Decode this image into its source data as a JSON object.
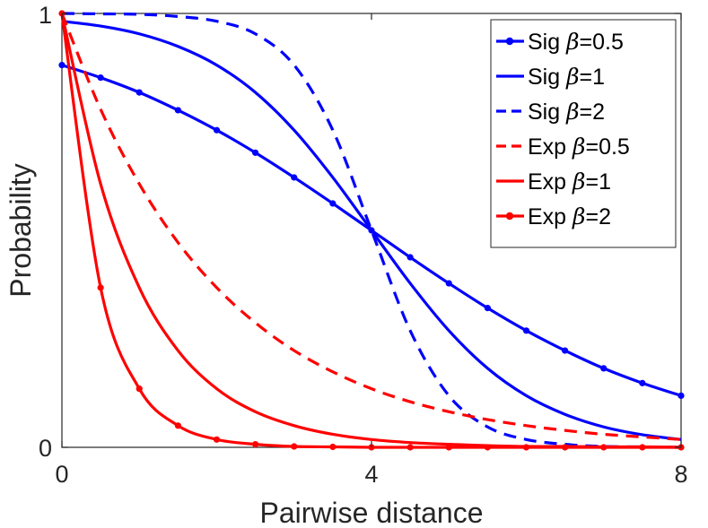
{
  "chart_data": {
    "type": "line",
    "title": "",
    "xlabel": "Pairwise distance",
    "ylabel": "Probability",
    "xlim": [
      0,
      8
    ],
    "ylim": [
      0,
      1
    ],
    "x_ticks": [
      0,
      4,
      8
    ],
    "x_tick_labels": [
      "0",
      "4",
      "8"
    ],
    "y_ticks": [
      0,
      1
    ],
    "y_tick_labels": [
      "0",
      "1"
    ],
    "grid": false,
    "legend_position": "top-right",
    "x": [
      0,
      0.5,
      1,
      1.5,
      2,
      2.5,
      3,
      3.5,
      4,
      4.5,
      5,
      5.5,
      6,
      6.5,
      7,
      7.5,
      8
    ],
    "series": [
      {
        "name": "Sig β=0.5",
        "label_prefix": "Sig",
        "beta": "=0.5",
        "color": "#0000ff",
        "line_style": "solid",
        "marker": true,
        "values": [
          0.881,
          0.852,
          0.818,
          0.777,
          0.731,
          0.679,
          0.622,
          0.562,
          0.5,
          0.438,
          0.378,
          0.321,
          0.269,
          0.223,
          0.182,
          0.148,
          0.119
        ]
      },
      {
        "name": "Sig β=1",
        "label_prefix": "Sig",
        "beta": "=1",
        "color": "#0000ff",
        "line_style": "solid",
        "marker": false,
        "values": [
          0.982,
          0.971,
          0.953,
          0.924,
          0.881,
          0.818,
          0.731,
          0.622,
          0.5,
          0.378,
          0.269,
          0.182,
          0.119,
          0.076,
          0.047,
          0.029,
          0.018
        ]
      },
      {
        "name": "Sig β=2",
        "label_prefix": "Sig",
        "beta": "=2",
        "color": "#0000ff",
        "line_style": "dashed",
        "marker": false,
        "values": [
          1.0,
          0.999,
          0.998,
          0.993,
          0.982,
          0.953,
          0.881,
          0.731,
          0.5,
          0.269,
          0.119,
          0.047,
          0.018,
          0.007,
          0.002,
          0.001,
          0.0
        ]
      },
      {
        "name": "Exp β=0.5",
        "label_prefix": "Exp",
        "beta": "=0.5",
        "color": "#ff0000",
        "line_style": "dashed",
        "marker": false,
        "values": [
          1.0,
          0.779,
          0.607,
          0.472,
          0.368,
          0.287,
          0.223,
          0.174,
          0.135,
          0.105,
          0.082,
          0.064,
          0.05,
          0.039,
          0.03,
          0.024,
          0.018
        ]
      },
      {
        "name": "Exp β=1",
        "label_prefix": "Exp",
        "beta": "=1",
        "color": "#ff0000",
        "line_style": "solid",
        "marker": false,
        "values": [
          1.0,
          0.607,
          0.368,
          0.223,
          0.135,
          0.082,
          0.05,
          0.03,
          0.018,
          0.011,
          0.007,
          0.004,
          0.002,
          0.002,
          0.001,
          0.001,
          0.0
        ]
      },
      {
        "name": "Exp β=2",
        "label_prefix": "Exp",
        "beta": "=2",
        "color": "#ff0000",
        "line_style": "solid",
        "marker": true,
        "values": [
          1.0,
          0.368,
          0.135,
          0.05,
          0.018,
          0.007,
          0.002,
          0.001,
          0.0,
          0.0,
          0.0,
          0.0,
          0.0,
          0.0,
          0.0,
          0.0,
          0.0
        ]
      }
    ]
  },
  "legend_symbol": "β"
}
